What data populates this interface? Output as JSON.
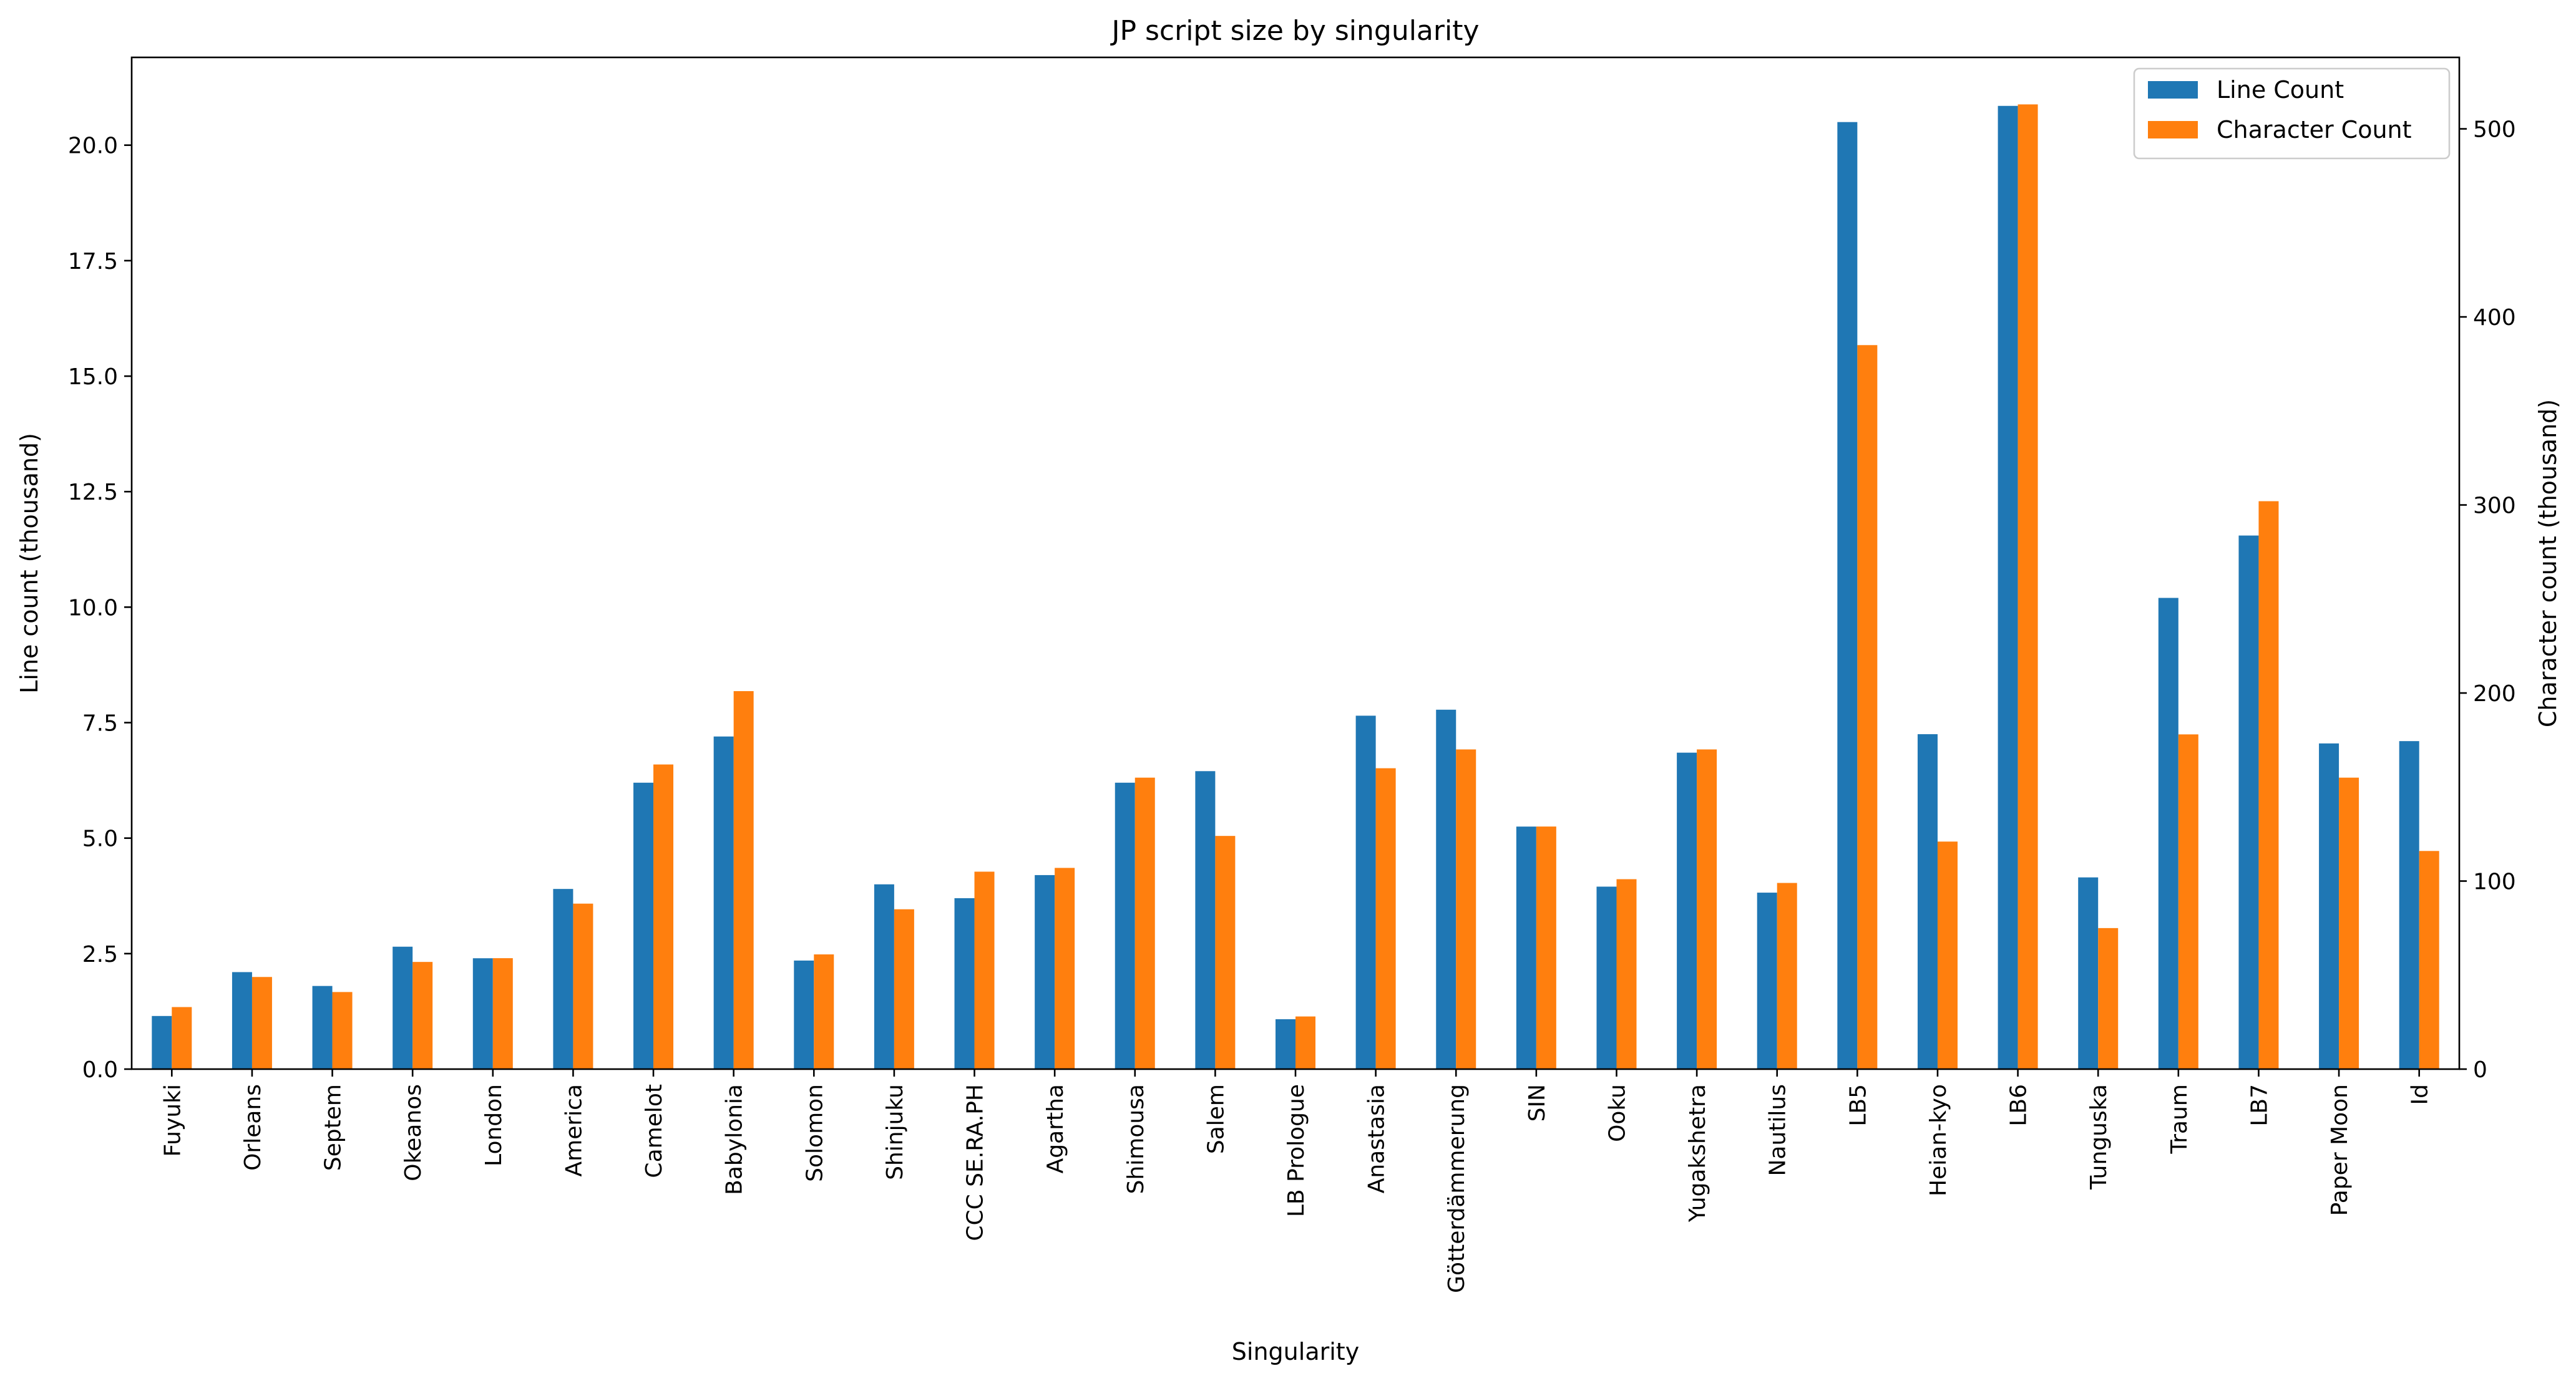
{
  "chart_data": {
    "type": "bar",
    "title": "JP script size by singularity",
    "xlabel": "Singularity",
    "ylabel_left": "Line count (thousand)",
    "ylabel_right": "Character count (thousand)",
    "categories": [
      "Fuyuki",
      "Orleans",
      "Septem",
      "Okeanos",
      "London",
      "America",
      "Camelot",
      "Babylonia",
      "Solomon",
      "Shinjuku",
      "CCC SE.RA.PH",
      "Agartha",
      "Shimousa",
      "Salem",
      "LB Prologue",
      "Anastasia",
      "Götterdämmerung",
      "SIN",
      "Ooku",
      "Yugakshetra",
      "Nautilus",
      "LB5",
      "Heian-kyo",
      "LB6",
      "Tunguska",
      "Traum",
      "LB7",
      "Paper Moon",
      "Id"
    ],
    "series": [
      {
        "name": "Line Count",
        "axis": "left",
        "color": "#1f77b4",
        "values": [
          1.15,
          2.1,
          1.8,
          2.65,
          2.4,
          3.9,
          6.2,
          7.2,
          2.35,
          4.0,
          3.7,
          4.2,
          6.2,
          6.45,
          1.08,
          7.65,
          7.78,
          5.25,
          3.95,
          6.85,
          3.82,
          20.5,
          7.25,
          20.85,
          4.15,
          10.2,
          11.55,
          7.05,
          7.1
        ]
      },
      {
        "name": "Character Count",
        "axis": "right",
        "color": "#ff7f0e",
        "values": [
          33,
          49,
          41,
          57,
          59,
          88,
          162,
          201,
          61,
          85,
          105,
          107,
          155,
          124,
          28,
          160,
          170,
          129,
          101,
          170,
          99,
          385,
          121,
          513,
          75,
          178,
          302,
          155,
          116
        ]
      }
    ],
    "ylim_left": [
      0,
      21.9
    ],
    "ylim_right": [
      0,
      538
    ],
    "yticks_left": [
      "0.0",
      "2.5",
      "5.0",
      "7.5",
      "10.0",
      "12.5",
      "15.0",
      "17.5",
      "20.0"
    ],
    "yticks_right": [
      "0",
      "100",
      "200",
      "300",
      "400",
      "500"
    ],
    "legend_position": "top-right",
    "grid": false
  }
}
